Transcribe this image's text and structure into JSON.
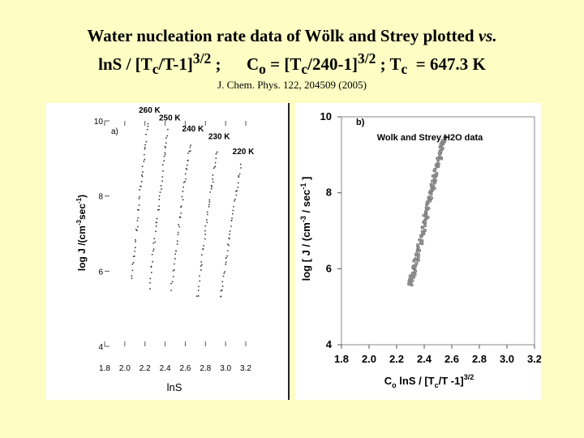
{
  "slide": {
    "title_line1": "Water nucleation rate data of Wölk and Strey plotted",
    "title_vs": "vs.",
    "title_line2_a": "lnS / [T",
    "title_line2_sub_c1": "c",
    "title_line2_b": "/T-1]",
    "title_line2_sup1": "3/2",
    "title_line2_c": " ;      C",
    "title_line2_sub_o": "o",
    "title_line2_d": " = [T",
    "title_line2_sub_c2": "c",
    "title_line2_e": "/240-1]",
    "title_line2_sup2": "3/2",
    "title_line2_f": " ; T",
    "title_line2_sub_c3": "c",
    "title_line2_g": "  = 647.3 K",
    "citation": "J. Chem. Phys. 122, 204509 (2005)"
  },
  "chart_data": [
    {
      "panel_label": "a)",
      "type": "scatter",
      "xlabel": "lnS",
      "ylabel": "log J /(cm-3sec-1)",
      "xlim": [
        1.8,
        3.2
      ],
      "ylim": [
        4,
        10
      ],
      "xticks": [
        "1.8",
        "2.0",
        "2.2",
        "2.4",
        "2.6",
        "2.8",
        "3.0",
        "3.2"
      ],
      "yticks": [
        "4",
        "6",
        "8",
        "10"
      ],
      "series": [
        {
          "name": "260 K",
          "x": [
            2.07,
            2.11,
            2.15,
            2.19,
            2.23
          ],
          "y": [
            5.8,
            6.9,
            8.0,
            9.0,
            10.0
          ]
        },
        {
          "name": "250 K",
          "x": [
            2.25,
            2.29,
            2.34,
            2.39,
            2.43
          ],
          "y": [
            5.6,
            6.7,
            7.8,
            8.9,
            9.8
          ]
        },
        {
          "name": "240 K",
          "x": [
            2.46,
            2.51,
            2.56,
            2.61,
            2.66
          ],
          "y": [
            5.5,
            6.6,
            7.7,
            8.7,
            9.5
          ]
        },
        {
          "name": "230 K",
          "x": [
            2.72,
            2.77,
            2.82,
            2.87,
            2.92
          ],
          "y": [
            5.3,
            6.4,
            7.5,
            8.4,
            9.3
          ]
        },
        {
          "name": "220 K",
          "x": [
            2.95,
            3.0,
            3.05,
            3.1,
            3.16
          ],
          "y": [
            5.3,
            6.2,
            7.1,
            8.0,
            8.9
          ]
        }
      ]
    },
    {
      "panel_label": "b)",
      "type": "scatter",
      "title": "Wolk and Strey H2O data",
      "xlabel": "Co lnS /  [Tc/T -1]3/2",
      "ylabel": "log [ J / (cm-3 / sec-1 ]",
      "xlim": [
        1.8,
        3.2
      ],
      "ylim": [
        4,
        10
      ],
      "xticks": [
        "1.8",
        "2.0",
        "2.2",
        "2.4",
        "2.6",
        "2.8",
        "3.0",
        "3.2"
      ],
      "yticks": [
        "4",
        "6",
        "8",
        "10"
      ],
      "series": [
        {
          "name": "",
          "x": [
            2.3,
            2.35,
            2.4,
            2.45,
            2.5,
            2.55
          ],
          "y": [
            5.6,
            6.3,
            7.2,
            8.0,
            8.8,
            9.5
          ]
        }
      ]
    }
  ]
}
